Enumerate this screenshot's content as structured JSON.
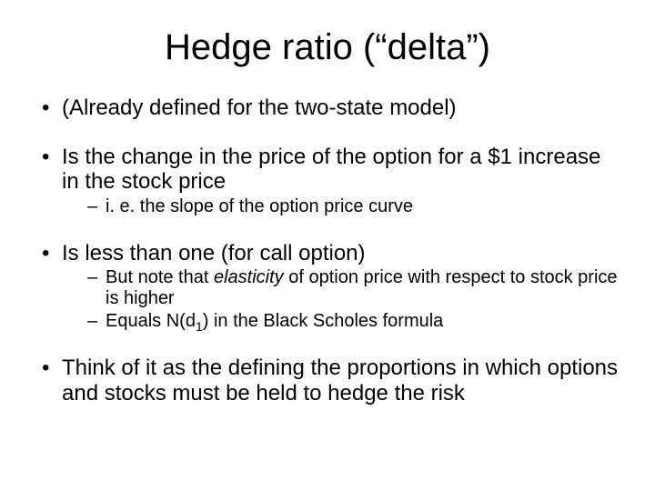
{
  "title": "Hedge ratio (“delta”)",
  "bullets": {
    "b0": {
      "text": "(Already defined for the two-state model)"
    },
    "b1": {
      "text": " Is the change in the price of the option for a $1 increase in the stock price",
      "sub": {
        "s0": "i. e. the slope of the option price curve"
      }
    },
    "b2": {
      "text": "Is less than one  (for call option)",
      "sub": {
        "s0_a": "But note that ",
        "s0_em": "elasticity",
        "s0_b": " of option price with respect to stock price is higher",
        "s1_a": "Equals N(d",
        "s1_sub": "1",
        "s1_b": ") in the Black Scholes formula"
      }
    },
    "b3": {
      "text": "Think of it as the defining the proportions in which options and stocks must be held to hedge the risk"
    }
  }
}
